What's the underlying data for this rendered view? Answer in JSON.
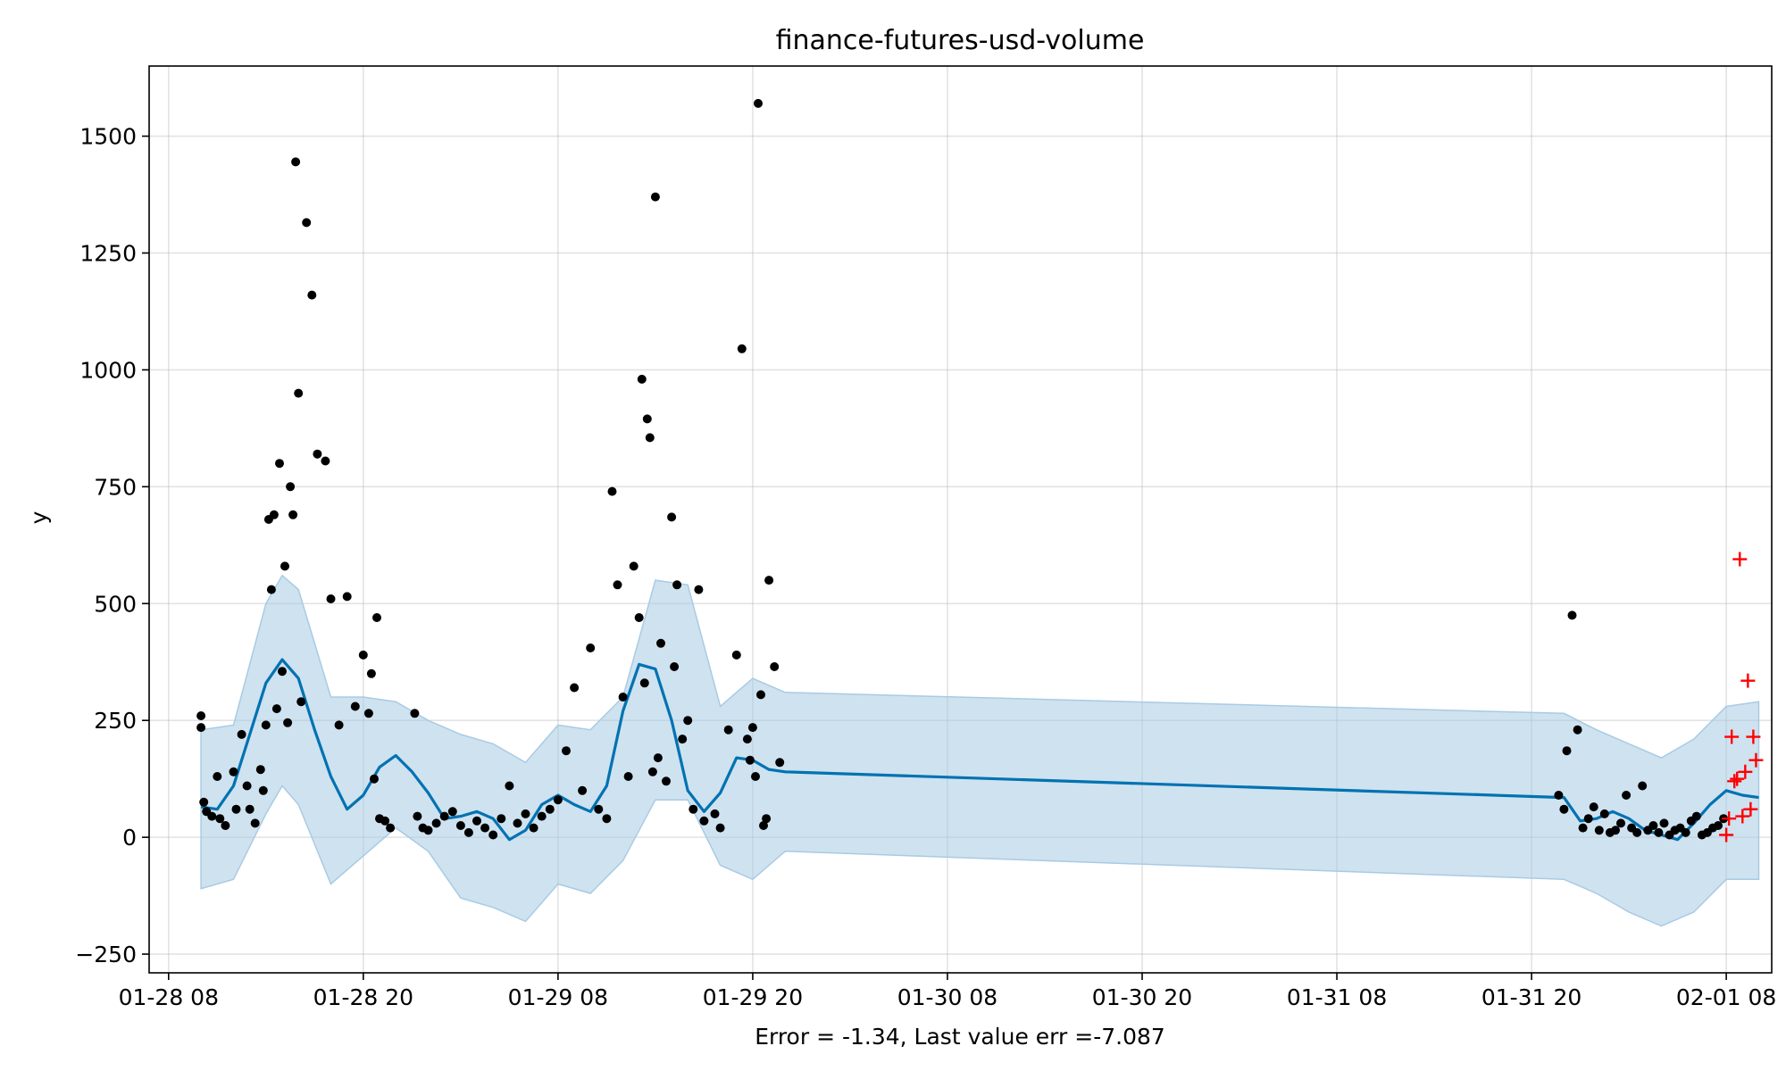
{
  "chart_data": {
    "type": "scatter",
    "title": "finance-futures-usd-volume",
    "xlabel": "Error = -1.34, Last value err =-7.087",
    "ylabel": "y",
    "ylim": [
      -290,
      1650
    ],
    "xlim": [
      "2024-01-28 06:48",
      "2024-02-01 10:48"
    ],
    "grid": true,
    "x_tick_labels": [
      "01-28 08",
      "01-28 20",
      "01-29 08",
      "01-29 20",
      "01-30 08",
      "01-30 20",
      "01-31 08",
      "01-31 20",
      "02-01 08"
    ],
    "x_ticks": [
      "2024-01-28 08:00",
      "2024-01-28 20:00",
      "2024-01-29 08:00",
      "2024-01-29 20:00",
      "2024-01-30 08:00",
      "2024-01-30 20:00",
      "2024-01-31 08:00",
      "2024-01-31 20:00",
      "2024-02-01 08:00"
    ],
    "y_ticks": [
      -250,
      0,
      250,
      500,
      750,
      1000,
      1250,
      1500
    ],
    "y_tick_labels": [
      "−250",
      "0",
      "250",
      "500",
      "750",
      "1000",
      "1250",
      "1500"
    ],
    "colors": {
      "observed": "#000000",
      "forecast": "#0072B2",
      "interval": "#a8cbe4",
      "test": "#ff0000"
    },
    "forecast_line": {
      "x": [
        "2024-01-28 10:00",
        "2024-01-28 11:00",
        "2024-01-28 12:00",
        "2024-01-28 13:00",
        "2024-01-28 14:00",
        "2024-01-28 15:00",
        "2024-01-28 16:00",
        "2024-01-28 17:00",
        "2024-01-28 18:00",
        "2024-01-28 19:00",
        "2024-01-28 20:00",
        "2024-01-28 21:00",
        "2024-01-28 22:00",
        "2024-01-28 23:00",
        "2024-01-29 00:00",
        "2024-01-29 01:00",
        "2024-01-29 02:00",
        "2024-01-29 03:00",
        "2024-01-29 04:00",
        "2024-01-29 05:00",
        "2024-01-29 06:00",
        "2024-01-29 07:00",
        "2024-01-29 08:00",
        "2024-01-29 09:00",
        "2024-01-29 10:00",
        "2024-01-29 11:00",
        "2024-01-29 12:00",
        "2024-01-29 13:00",
        "2024-01-29 14:00",
        "2024-01-29 15:00",
        "2024-01-29 16:00",
        "2024-01-29 17:00",
        "2024-01-29 18:00",
        "2024-01-29 19:00",
        "2024-01-29 20:00",
        "2024-01-29 21:00",
        "2024-01-29 22:00",
        "2024-01-31 22:00",
        "2024-01-31 23:00",
        "2024-02-01 00:00",
        "2024-02-01 01:00",
        "2024-02-01 02:00",
        "2024-02-01 03:00",
        "2024-02-01 04:00",
        "2024-02-01 05:00",
        "2024-02-01 06:00",
        "2024-02-01 07:00",
        "2024-02-01 08:00",
        "2024-02-01 09:00",
        "2024-02-01 10:00"
      ],
      "y": [
        65,
        60,
        110,
        220,
        330,
        380,
        340,
        230,
        130,
        60,
        90,
        150,
        175,
        140,
        95,
        40,
        45,
        55,
        40,
        -5,
        15,
        70,
        90,
        70,
        55,
        110,
        270,
        370,
        360,
        250,
        100,
        55,
        95,
        170,
        165,
        145,
        140,
        85,
        35,
        40,
        55,
        40,
        15,
        5,
        -5,
        30,
        70,
        100,
        90,
        85
      ]
    },
    "interval": {
      "x": [
        "2024-01-28 10:00",
        "2024-01-28 12:00",
        "2024-01-28 14:00",
        "2024-01-28 15:00",
        "2024-01-28 16:00",
        "2024-01-28 18:00",
        "2024-01-28 20:00",
        "2024-01-28 22:00",
        "2024-01-29 00:00",
        "2024-01-29 02:00",
        "2024-01-29 04:00",
        "2024-01-29 06:00",
        "2024-01-29 08:00",
        "2024-01-29 10:00",
        "2024-01-29 12:00",
        "2024-01-29 14:00",
        "2024-01-29 16:00",
        "2024-01-29 18:00",
        "2024-01-29 20:00",
        "2024-01-29 22:00",
        "2024-01-31 22:00",
        "2024-02-01 00:00",
        "2024-02-01 02:00",
        "2024-02-01 04:00",
        "2024-02-01 06:00",
        "2024-02-01 08:00",
        "2024-02-01 10:00"
      ],
      "lower": [
        -110,
        -90,
        50,
        110,
        70,
        -100,
        -40,
        20,
        -30,
        -130,
        -150,
        -180,
        -100,
        -120,
        -50,
        80,
        80,
        -60,
        -90,
        -30,
        -90,
        -120,
        -160,
        -190,
        -160,
        -90,
        -90
      ],
      "upper": [
        230,
        240,
        500,
        560,
        530,
        300,
        300,
        290,
        250,
        220,
        200,
        160,
        240,
        230,
        300,
        550,
        540,
        280,
        340,
        310,
        265,
        230,
        200,
        170,
        210,
        280,
        290
      ]
    },
    "observed": {
      "x": [
        "2024-01-28 10:00",
        "2024-01-28 10:00",
        "2024-01-28 10:10",
        "2024-01-28 10:20",
        "2024-01-28 10:40",
        "2024-01-28 11:00",
        "2024-01-28 11:10",
        "2024-01-28 11:30",
        "2024-01-28 12:00",
        "2024-01-28 12:10",
        "2024-01-28 12:30",
        "2024-01-28 12:50",
        "2024-01-28 13:00",
        "2024-01-28 13:20",
        "2024-01-28 13:40",
        "2024-01-28 13:50",
        "2024-01-28 14:00",
        "2024-01-28 14:10",
        "2024-01-28 14:20",
        "2024-01-28 14:30",
        "2024-01-28 14:40",
        "2024-01-28 14:50",
        "2024-01-28 15:00",
        "2024-01-28 15:10",
        "2024-01-28 15:20",
        "2024-01-28 15:30",
        "2024-01-28 15:40",
        "2024-01-28 15:50",
        "2024-01-28 16:00",
        "2024-01-28 16:10",
        "2024-01-28 16:30",
        "2024-01-28 16:50",
        "2024-01-28 17:10",
        "2024-01-28 17:40",
        "2024-01-28 18:00",
        "2024-01-28 18:30",
        "2024-01-28 19:00",
        "2024-01-28 19:30",
        "2024-01-28 20:00",
        "2024-01-28 20:20",
        "2024-01-28 20:30",
        "2024-01-28 20:40",
        "2024-01-28 20:50",
        "2024-01-28 21:00",
        "2024-01-28 21:20",
        "2024-01-28 21:40",
        "2024-01-28 23:10",
        "2024-01-28 23:20",
        "2024-01-28 23:40",
        "2024-01-29 00:00",
        "2024-01-29 00:30",
        "2024-01-29 01:00",
        "2024-01-29 01:30",
        "2024-01-29 02:00",
        "2024-01-29 02:30",
        "2024-01-29 03:00",
        "2024-01-29 03:30",
        "2024-01-29 04:00",
        "2024-01-29 04:30",
        "2024-01-29 05:00",
        "2024-01-29 05:30",
        "2024-01-29 06:00",
        "2024-01-29 06:30",
        "2024-01-29 07:00",
        "2024-01-29 07:30",
        "2024-01-29 08:00",
        "2024-01-29 08:30",
        "2024-01-29 09:00",
        "2024-01-29 09:30",
        "2024-01-29 10:00",
        "2024-01-29 10:30",
        "2024-01-29 11:00",
        "2024-01-29 11:20",
        "2024-01-29 11:40",
        "2024-01-29 12:00",
        "2024-01-29 12:20",
        "2024-01-29 12:40",
        "2024-01-29 13:00",
        "2024-01-29 13:10",
        "2024-01-29 13:20",
        "2024-01-29 13:30",
        "2024-01-29 13:40",
        "2024-01-29 13:50",
        "2024-01-29 14:00",
        "2024-01-29 14:10",
        "2024-01-29 14:20",
        "2024-01-29 14:40",
        "2024-01-29 15:00",
        "2024-01-29 15:10",
        "2024-01-29 15:20",
        "2024-01-29 15:40",
        "2024-01-29 16:00",
        "2024-01-29 16:20",
        "2024-01-29 16:40",
        "2024-01-29 17:00",
        "2024-01-29 17:40",
        "2024-01-29 18:00",
        "2024-01-29 18:30",
        "2024-01-29 19:00",
        "2024-01-29 19:20",
        "2024-01-29 19:40",
        "2024-01-29 19:50",
        "2024-01-29 20:00",
        "2024-01-29 20:10",
        "2024-01-29 20:20",
        "2024-01-29 20:30",
        "2024-01-29 20:40",
        "2024-01-29 20:50",
        "2024-01-29 21:00",
        "2024-01-29 21:20",
        "2024-01-29 21:40",
        "2024-01-31 21:40",
        "2024-01-31 22:00",
        "2024-01-31 22:10",
        "2024-01-31 22:30",
        "2024-01-31 22:50",
        "2024-01-31 23:10",
        "2024-01-31 23:30",
        "2024-01-31 23:50",
        "2024-02-01 00:10",
        "2024-02-01 00:30",
        "2024-02-01 00:50",
        "2024-02-01 01:10",
        "2024-02-01 01:30",
        "2024-02-01 01:50",
        "2024-02-01 02:10",
        "2024-02-01 02:30",
        "2024-02-01 02:50",
        "2024-02-01 03:10",
        "2024-02-01 03:30",
        "2024-02-01 03:50",
        "2024-02-01 04:10",
        "2024-02-01 04:30",
        "2024-02-01 04:50",
        "2024-02-01 05:10",
        "2024-02-01 05:30",
        "2024-02-01 05:50",
        "2024-02-01 06:10",
        "2024-02-01 06:30",
        "2024-02-01 06:50",
        "2024-02-01 07:10",
        "2024-02-01 07:30",
        "2024-02-01 07:50"
      ],
      "y": [
        260,
        235,
        75,
        55,
        45,
        130,
        40,
        25,
        140,
        60,
        220,
        110,
        60,
        30,
        145,
        100,
        240,
        680,
        530,
        690,
        275,
        800,
        355,
        580,
        245,
        750,
        690,
        1445,
        950,
        290,
        1315,
        1160,
        820,
        805,
        510,
        240,
        515,
        280,
        390,
        265,
        350,
        125,
        470,
        40,
        35,
        20,
        265,
        45,
        20,
        15,
        30,
        45,
        55,
        25,
        10,
        35,
        20,
        5,
        40,
        110,
        30,
        50,
        20,
        45,
        60,
        80,
        185,
        320,
        100,
        405,
        60,
        40,
        740,
        540,
        300,
        130,
        580,
        470,
        980,
        330,
        895,
        855,
        140,
        1370,
        170,
        415,
        120,
        685,
        365,
        540,
        210,
        250,
        60,
        530,
        35,
        50,
        20,
        230,
        390,
        1045,
        210,
        165,
        235,
        130,
        1570,
        305,
        25,
        40,
        550,
        365,
        160,
        90,
        60,
        185,
        475,
        230,
        20,
        40,
        65,
        15,
        50,
        10,
        15,
        30,
        90,
        20,
        10,
        110,
        15,
        25,
        10,
        30,
        5,
        15,
        20,
        10,
        35,
        45,
        5,
        10,
        20,
        25,
        40
      ]
    },
    "test_points": {
      "x": [
        "2024-02-01 08:00",
        "2024-02-01 08:10",
        "2024-02-01 08:20",
        "2024-02-01 08:30",
        "2024-02-01 08:40",
        "2024-02-01 08:50",
        "2024-02-01 09:00",
        "2024-02-01 09:10",
        "2024-02-01 09:20",
        "2024-02-01 09:30",
        "2024-02-01 09:40",
        "2024-02-01 09:50"
      ],
      "y": [
        5,
        40,
        215,
        120,
        125,
        595,
        45,
        140,
        335,
        60,
        215,
        165
      ]
    }
  }
}
